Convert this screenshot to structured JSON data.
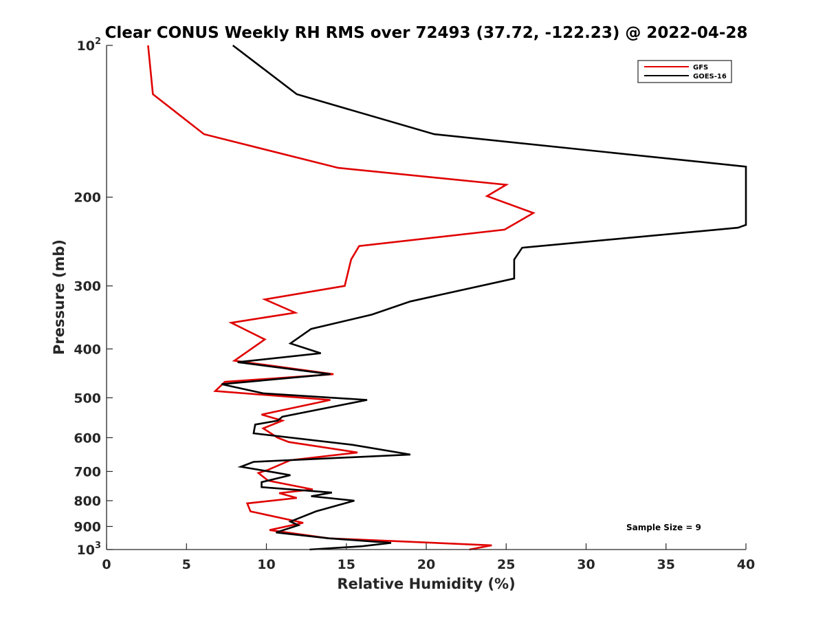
{
  "chart_data": {
    "type": "line",
    "title": "Clear CONUS Weekly RH RMS over 72493 (37.72, -122.23) @ 2022-04-28",
    "xlabel": "Relative Humidity (%)",
    "ylabel": "Pressure (mb)",
    "xlim": [
      0,
      40
    ],
    "ylim": [
      1000,
      100
    ],
    "yscale": "log",
    "y_reversed": true,
    "x_ticks": [
      "0",
      "5",
      "10",
      "15",
      "20",
      "25",
      "30",
      "35",
      "40"
    ],
    "x_tick_values": [
      0,
      5,
      10,
      15,
      20,
      25,
      30,
      35,
      40
    ],
    "y_ticks": [
      {
        "value": 100,
        "base": "10",
        "exp": "2"
      },
      {
        "value": 200,
        "label": "200"
      },
      {
        "value": 300,
        "label": "300"
      },
      {
        "value": 400,
        "label": "400"
      },
      {
        "value": 500,
        "label": "500"
      },
      {
        "value": 600,
        "label": "600"
      },
      {
        "value": 700,
        "label": "700"
      },
      {
        "value": 800,
        "label": "800"
      },
      {
        "value": 900,
        "label": "900"
      },
      {
        "value": 1000,
        "base": "10",
        "exp": "3"
      }
    ],
    "legend_position": "top-right",
    "grid": false,
    "annotation": "Sample Size = 9",
    "series": [
      {
        "name": "GFS",
        "color": "#e00000",
        "points": [
          [
            2.6,
            100
          ],
          [
            2.9,
            125
          ],
          [
            6.1,
            150
          ],
          [
            14.5,
            175
          ],
          [
            25.0,
            189
          ],
          [
            23.8,
            199
          ],
          [
            26.7,
            215
          ],
          [
            24.9,
            232
          ],
          [
            15.8,
            250
          ],
          [
            15.3,
            266
          ],
          [
            14.9,
            300
          ],
          [
            9.9,
            319
          ],
          [
            11.8,
            339
          ],
          [
            7.8,
            355
          ],
          [
            9.9,
            383
          ],
          [
            8.0,
            422
          ],
          [
            14.2,
            449
          ],
          [
            7.4,
            465
          ],
          [
            6.8,
            485
          ],
          [
            14.0,
            505
          ],
          [
            9.7,
            540
          ],
          [
            11.0,
            555
          ],
          [
            9.8,
            575
          ],
          [
            10.7,
            600
          ],
          [
            11.4,
            612
          ],
          [
            15.7,
            642
          ],
          [
            11.5,
            665
          ],
          [
            10.1,
            695
          ],
          [
            9.5,
            705
          ],
          [
            10.1,
            730
          ],
          [
            12.9,
            760
          ],
          [
            10.8,
            773
          ],
          [
            11.9,
            790
          ],
          [
            8.8,
            810
          ],
          [
            9.0,
            840
          ],
          [
            12.3,
            885
          ],
          [
            10.2,
            915
          ],
          [
            13.9,
            950
          ],
          [
            24.1,
            981
          ],
          [
            22.7,
            1000
          ]
        ]
      },
      {
        "name": "GOES-16",
        "color": "#000000",
        "points": [
          [
            7.9,
            100
          ],
          [
            11.9,
            125
          ],
          [
            20.5,
            150
          ],
          [
            40.0,
            174
          ],
          [
            40.0,
            227
          ],
          [
            39.5,
            230
          ],
          [
            26.0,
            252
          ],
          [
            25.5,
            266
          ],
          [
            25.5,
            290
          ],
          [
            19.0,
            322
          ],
          [
            16.6,
            342
          ],
          [
            12.8,
            365
          ],
          [
            11.5,
            390
          ],
          [
            13.4,
            408
          ],
          [
            8.2,
            425
          ],
          [
            14.0,
            449
          ],
          [
            7.2,
            470
          ],
          [
            9.8,
            490
          ],
          [
            16.3,
            505
          ],
          [
            11.0,
            545
          ],
          [
            10.7,
            555
          ],
          [
            9.3,
            565
          ],
          [
            9.2,
            588
          ],
          [
            15.4,
            620
          ],
          [
            19.0,
            648
          ],
          [
            9.2,
            670
          ],
          [
            8.4,
            685
          ],
          [
            10.5,
            703
          ],
          [
            11.5,
            712
          ],
          [
            9.7,
            735
          ],
          [
            9.7,
            752
          ],
          [
            14.1,
            771
          ],
          [
            12.8,
            784
          ],
          [
            15.5,
            800
          ],
          [
            13.1,
            840
          ],
          [
            11.5,
            880
          ],
          [
            12.0,
            895
          ],
          [
            10.6,
            925
          ],
          [
            13.9,
            950
          ],
          [
            17.8,
            970
          ],
          [
            16.0,
            985
          ],
          [
            12.7,
            1000
          ]
        ]
      }
    ]
  }
}
